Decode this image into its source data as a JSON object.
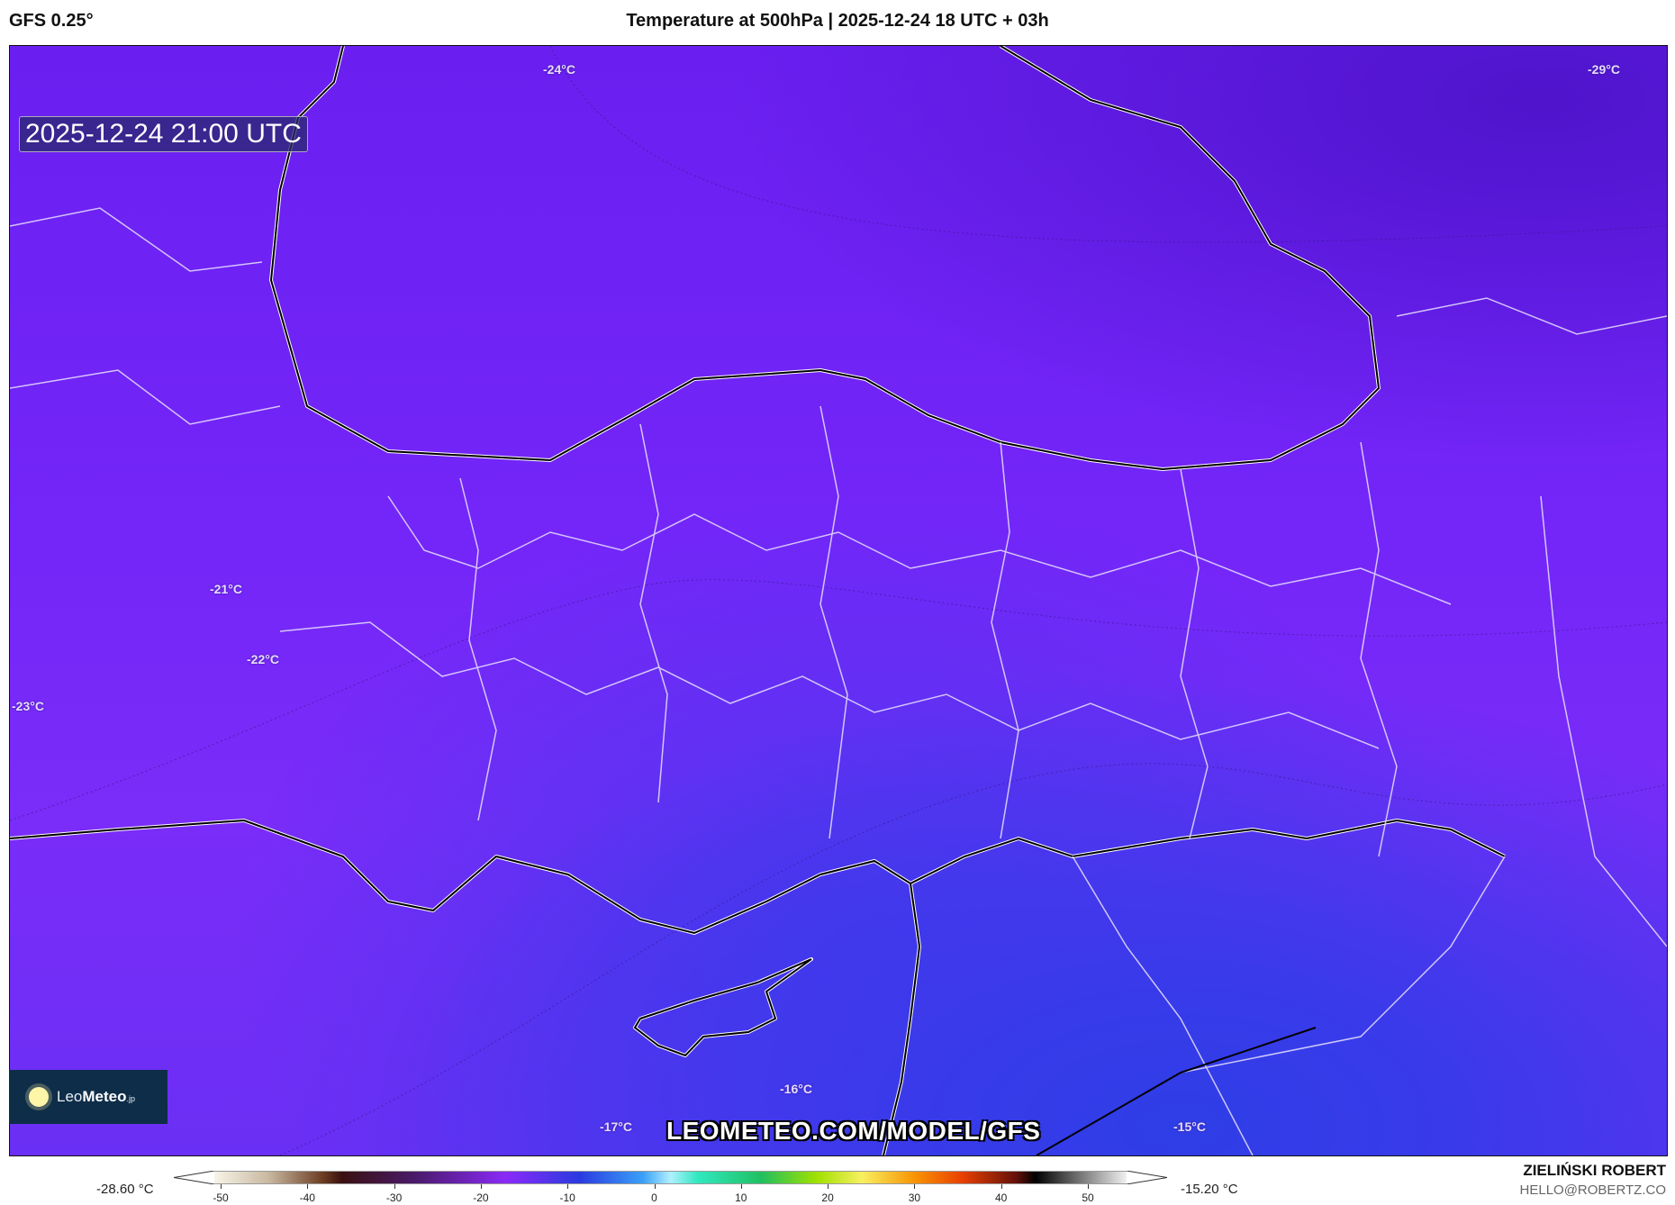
{
  "header": {
    "model": "GFS 0.25°",
    "title": "Temperature at 500hPa | 2025-12-24 18 UTC + 03h"
  },
  "map": {
    "valid_time": "2025-12-24 21:00 UTC",
    "isotherm_labels": [
      "-24°C",
      "-29°C",
      "-21°C",
      "-22°C",
      "-23°C",
      "-17°C",
      "-16°C",
      "-15°C"
    ],
    "watermark": "LEOMETEO.COM/MODEL/GFS",
    "logo": {
      "leo": "Leo",
      "meteo": "Meteo",
      "suffix": ".jp"
    },
    "colors": {
      "cold": "#5014cc",
      "mid": "#7a2cf8",
      "warm": "#2e3ee6"
    }
  },
  "colorbar": {
    "min_label": "-28.60 °C",
    "max_label": "-15.20 °C",
    "ticks": [
      "-50",
      "-40",
      "-30",
      "-20",
      "-10",
      "0",
      "10",
      "20",
      "30",
      "40",
      "50"
    ],
    "range": [
      -55,
      55
    ]
  },
  "footer": {
    "author": "ZIELIŃSKI ROBERT",
    "email": "HELLO@ROBERTZ.CO"
  }
}
